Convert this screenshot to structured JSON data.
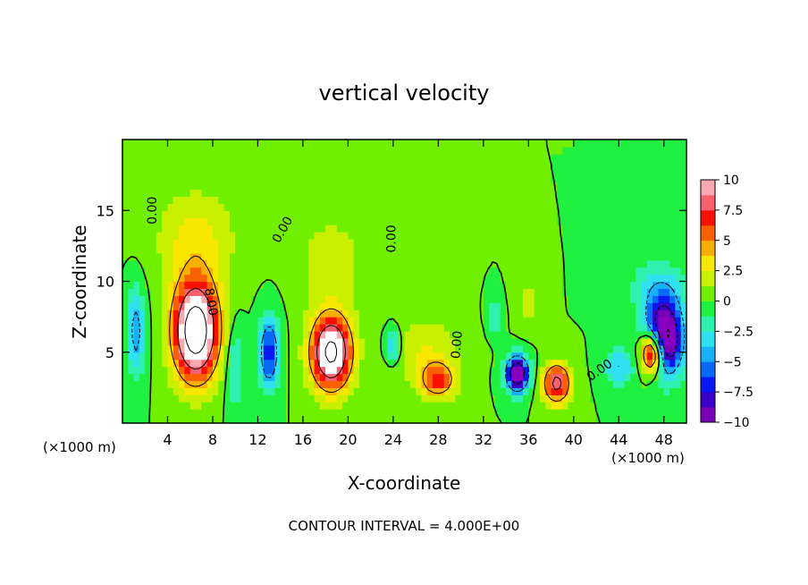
{
  "chart_data": {
    "type": "heatmap",
    "title": "vertical velocity",
    "xlabel": "X-coordinate",
    "ylabel": "Z-coordinate",
    "x_unit_label": "(×1000 m)",
    "x_unit_label_right": "(×1000 m)",
    "footer": "CONTOUR INTERVAL = 4.000E+00",
    "xlim": [
      0,
      50
    ],
    "ylim": [
      0,
      20
    ],
    "x_ticks": [
      4,
      8,
      12,
      16,
      20,
      24,
      28,
      32,
      36,
      40,
      44,
      48
    ],
    "y_ticks": [
      5,
      10,
      15
    ],
    "colorbar": {
      "range": [
        -10,
        10
      ],
      "ticks": [
        10,
        7.5,
        5,
        2.5,
        0,
        -2.5,
        -5,
        -7.5,
        -10
      ],
      "tick_labels": [
        "10",
        "7.5",
        "5",
        "2.5",
        "0",
        "−2.5",
        "−5",
        "−7.5",
        "−10"
      ],
      "colors": [
        "#7a00b8",
        "#3a00c8",
        "#0818f0",
        "#0868f8",
        "#18b0f8",
        "#30e0f0",
        "#30f0b0",
        "#20f040",
        "#70f000",
        "#c8f000",
        "#f8e800",
        "#f8b000",
        "#f86000",
        "#f81000",
        "#f86070",
        "#f8a8b0"
      ]
    },
    "contour_labels": [
      "0.00",
      "0.00",
      "0.00",
      "0.00",
      "8.00",
      "0.00"
    ],
    "features": [
      {
        "kind": "updraft",
        "x": 6.5,
        "z": 6.5,
        "sx": 2.0,
        "sz": 3.4,
        "amp": 15
      },
      {
        "kind": "updraft",
        "x": 18.5,
        "z": 5.0,
        "sx": 1.8,
        "sz": 2.6,
        "amp": 13
      },
      {
        "kind": "updraft",
        "x": 6.5,
        "z": 13.0,
        "sx": 3.5,
        "sz": 3.5,
        "amp": 3
      },
      {
        "kind": "updraft",
        "x": 18.5,
        "z": 11.5,
        "sx": 3.0,
        "sz": 3.5,
        "amp": 2
      },
      {
        "kind": "downdraft",
        "x": 13.0,
        "z": 5.0,
        "sx": 0.9,
        "sz": 2.5,
        "amp": -7
      },
      {
        "kind": "downdraft",
        "x": 1.2,
        "z": 6.5,
        "sx": 0.8,
        "sz": 3.0,
        "amp": -5
      },
      {
        "kind": "downdraft",
        "x": 10.0,
        "z": 4.0,
        "sx": 0.8,
        "sz": 3.0,
        "amp": -3
      },
      {
        "kind": "updraft",
        "x": 28.0,
        "z": 3.0,
        "sx": 1.5,
        "sz": 1.2,
        "amp": 6
      },
      {
        "kind": "updraft",
        "x": 27.0,
        "z": 5.0,
        "sx": 3.0,
        "sz": 2.5,
        "amp": 2.5
      },
      {
        "kind": "downdraft",
        "x": 24.0,
        "z": 5.5,
        "sx": 0.7,
        "sz": 1.2,
        "amp": -4
      },
      {
        "kind": "downdraft",
        "x": 35.0,
        "z": 3.5,
        "sx": 1.0,
        "sz": 1.2,
        "amp": -12
      },
      {
        "kind": "updraft",
        "x": 38.5,
        "z": 2.8,
        "sx": 1.2,
        "sz": 1.4,
        "amp": 9
      },
      {
        "kind": "updraft",
        "x": 36.0,
        "z": 8.5,
        "sx": 1.0,
        "sz": 1.8,
        "amp": 2
      },
      {
        "kind": "downdraft",
        "x": 33.0,
        "z": 7.5,
        "sx": 0.6,
        "sz": 1.2,
        "amp": -2.5
      },
      {
        "kind": "downdraft",
        "x": 48.0,
        "z": 6.0,
        "sx": 1.6,
        "sz": 2.5,
        "amp": -14
      },
      {
        "kind": "updraft",
        "x": 47.0,
        "z": 5.0,
        "sx": 1.0,
        "sz": 1.5,
        "amp": 14
      },
      {
        "kind": "downdraft",
        "x": 44.0,
        "z": 4.0,
        "sx": 1.2,
        "sz": 1.2,
        "amp": -4
      },
      {
        "kind": "downdraft",
        "x": 47.5,
        "z": 9.5,
        "sx": 2.5,
        "sz": 2.0,
        "amp": -3
      }
    ]
  }
}
